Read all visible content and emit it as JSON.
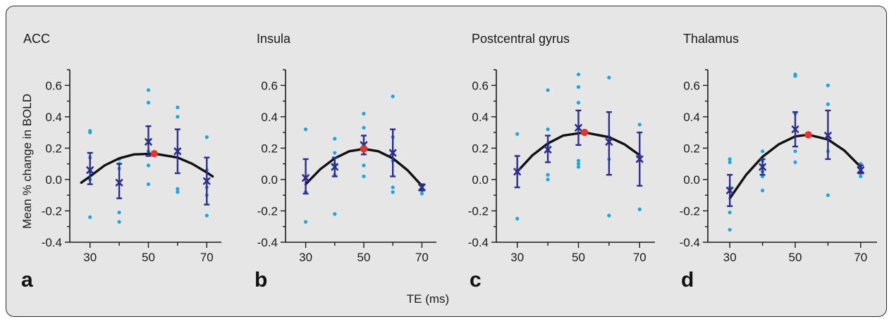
{
  "xlabel": "TE (ms)",
  "ylabel": "Mean % change in  BOLD",
  "colors": {
    "points": "#17a8e3",
    "means": "#2b2e8c",
    "fit": "#111111",
    "peak": "#e8342b",
    "background": "#e6e6e6"
  },
  "chart_data": [
    {
      "type": "scatter",
      "panel": "a",
      "title": "ACC",
      "x_ticks": [
        30,
        50,
        70
      ],
      "y_ticks": [
        "-0.4",
        "-0.2",
        "0.0",
        "0.2",
        "0.4",
        "0.6"
      ],
      "xlim": [
        25,
        75
      ],
      "ylim": [
        -0.4,
        0.7
      ],
      "x": [
        30,
        40,
        50,
        60,
        70
      ],
      "mean": [
        0.06,
        -0.02,
        0.24,
        0.18,
        -0.01
      ],
      "err_low": [
        -0.03,
        -0.12,
        0.15,
        0.04,
        -0.16
      ],
      "err_high": [
        0.17,
        0.1,
        0.34,
        0.32,
        0.14
      ],
      "individual": [
        [
          0.31,
          0.3,
          0.14,
          0.05,
          0.0,
          -0.24
        ],
        [
          0.13,
          0.1,
          0.07,
          -0.21,
          -0.27
        ],
        [
          0.57,
          0.49,
          0.25,
          0.18,
          0.09,
          -0.03
        ],
        [
          0.46,
          0.4,
          0.19,
          -0.06,
          -0.08
        ],
        [
          0.27,
          0.06,
          -0.05,
          -0.1,
          -0.23
        ]
      ],
      "fit_peak": {
        "x": 52,
        "y": 0.165
      },
      "fit_curve": [
        [
          27,
          -0.02
        ],
        [
          30,
          0.02
        ],
        [
          35,
          0.09
        ],
        [
          40,
          0.135
        ],
        [
          45,
          0.16
        ],
        [
          52,
          0.165
        ],
        [
          60,
          0.14
        ],
        [
          65,
          0.1
        ],
        [
          70,
          0.045
        ],
        [
          72,
          0.02
        ]
      ]
    },
    {
      "type": "scatter",
      "panel": "b",
      "title": "Insula",
      "x_ticks": [
        30,
        50,
        70
      ],
      "y_ticks": [
        "-0.4",
        "-0.2",
        "0.0",
        "0.2",
        "0.4",
        "0.6"
      ],
      "xlim": [
        25,
        75
      ],
      "ylim": [
        -0.4,
        0.7
      ],
      "x": [
        30,
        40,
        50,
        60,
        70
      ],
      "mean": [
        0.01,
        0.08,
        0.22,
        0.17,
        -0.05
      ],
      "err_low": [
        -0.09,
        0.02,
        0.16,
        0.02,
        -0.07
      ],
      "err_high": [
        0.13,
        0.14,
        0.28,
        0.32,
        -0.03
      ],
      "individual": [
        [
          0.32,
          0.01,
          -0.08,
          -0.27
        ],
        [
          0.26,
          0.17,
          0.1,
          0.03,
          -0.22
        ],
        [
          0.42,
          0.33,
          0.19,
          0.09,
          0.02
        ],
        [
          0.53,
          0.27,
          0.12,
          -0.05,
          -0.08
        ],
        [
          -0.04,
          -0.06,
          -0.07,
          -0.09
        ]
      ],
      "fit_peak": {
        "x": 50,
        "y": 0.195
      },
      "fit_curve": [
        [
          30,
          -0.03
        ],
        [
          35,
          0.065
        ],
        [
          40,
          0.135
        ],
        [
          45,
          0.18
        ],
        [
          50,
          0.195
        ],
        [
          55,
          0.18
        ],
        [
          60,
          0.135
        ],
        [
          65,
          0.06
        ],
        [
          70,
          -0.04
        ]
      ]
    },
    {
      "type": "scatter",
      "panel": "c",
      "title": "Postcentral gyrus",
      "x_ticks": [
        30,
        50,
        70
      ],
      "y_ticks": [
        "-0.4",
        "-0.2",
        "0.0",
        "0.2",
        "0.4",
        "0.6"
      ],
      "xlim": [
        25,
        75
      ],
      "ylim": [
        -0.4,
        0.7
      ],
      "x": [
        30,
        40,
        50,
        60,
        70
      ],
      "mean": [
        0.05,
        0.19,
        0.33,
        0.24,
        0.13
      ],
      "err_low": [
        -0.05,
        0.11,
        0.22,
        0.03,
        -0.04
      ],
      "err_high": [
        0.15,
        0.28,
        0.44,
        0.43,
        0.3
      ],
      "individual": [
        [
          0.29,
          0.05,
          -0.25
        ],
        [
          0.57,
          0.32,
          0.22,
          0.03,
          0.0
        ],
        [
          0.67,
          0.59,
          0.49,
          0.12,
          0.1,
          0.08
        ],
        [
          0.65,
          0.27,
          0.13,
          -0.23
        ],
        [
          0.35,
          0.15,
          -0.19
        ]
      ],
      "fit_peak": {
        "x": 52,
        "y": 0.3
      },
      "fit_curve": [
        [
          30,
          0.05
        ],
        [
          35,
          0.155
        ],
        [
          40,
          0.23
        ],
        [
          45,
          0.28
        ],
        [
          52,
          0.3
        ],
        [
          60,
          0.27
        ],
        [
          65,
          0.225
        ],
        [
          70,
          0.155
        ]
      ]
    },
    {
      "type": "scatter",
      "panel": "d",
      "title": "Thalamus",
      "x_ticks": [
        30,
        50,
        70
      ],
      "y_ticks": [
        "-0.4",
        "-0.2",
        "0.0",
        "0.2",
        "0.4",
        "0.6"
      ],
      "xlim": [
        25,
        75
      ],
      "ylim": [
        -0.4,
        0.7
      ],
      "x": [
        30,
        40,
        50,
        60,
        70
      ],
      "mean": [
        -0.07,
        0.08,
        0.32,
        0.28,
        0.06
      ],
      "err_low": [
        -0.17,
        0.03,
        0.21,
        0.13,
        0.04
      ],
      "err_high": [
        0.03,
        0.13,
        0.43,
        0.44,
        0.09
      ],
      "individual": [
        [
          0.13,
          0.11,
          -0.05,
          -0.21,
          -0.32
        ],
        [
          0.18,
          0.12,
          0.05,
          0.02,
          -0.07
        ],
        [
          0.67,
          0.66,
          0.42,
          0.18,
          0.11
        ],
        [
          0.6,
          0.48,
          0.18,
          -0.1
        ],
        [
          0.1,
          0.07,
          0.04,
          0.02
        ]
      ],
      "fit_peak": {
        "x": 54,
        "y": 0.285
      },
      "fit_curve": [
        [
          30,
          -0.12
        ],
        [
          35,
          0.03
        ],
        [
          40,
          0.145
        ],
        [
          45,
          0.225
        ],
        [
          50,
          0.275
        ],
        [
          54,
          0.285
        ],
        [
          60,
          0.255
        ],
        [
          65,
          0.185
        ],
        [
          70,
          0.08
        ]
      ]
    }
  ]
}
